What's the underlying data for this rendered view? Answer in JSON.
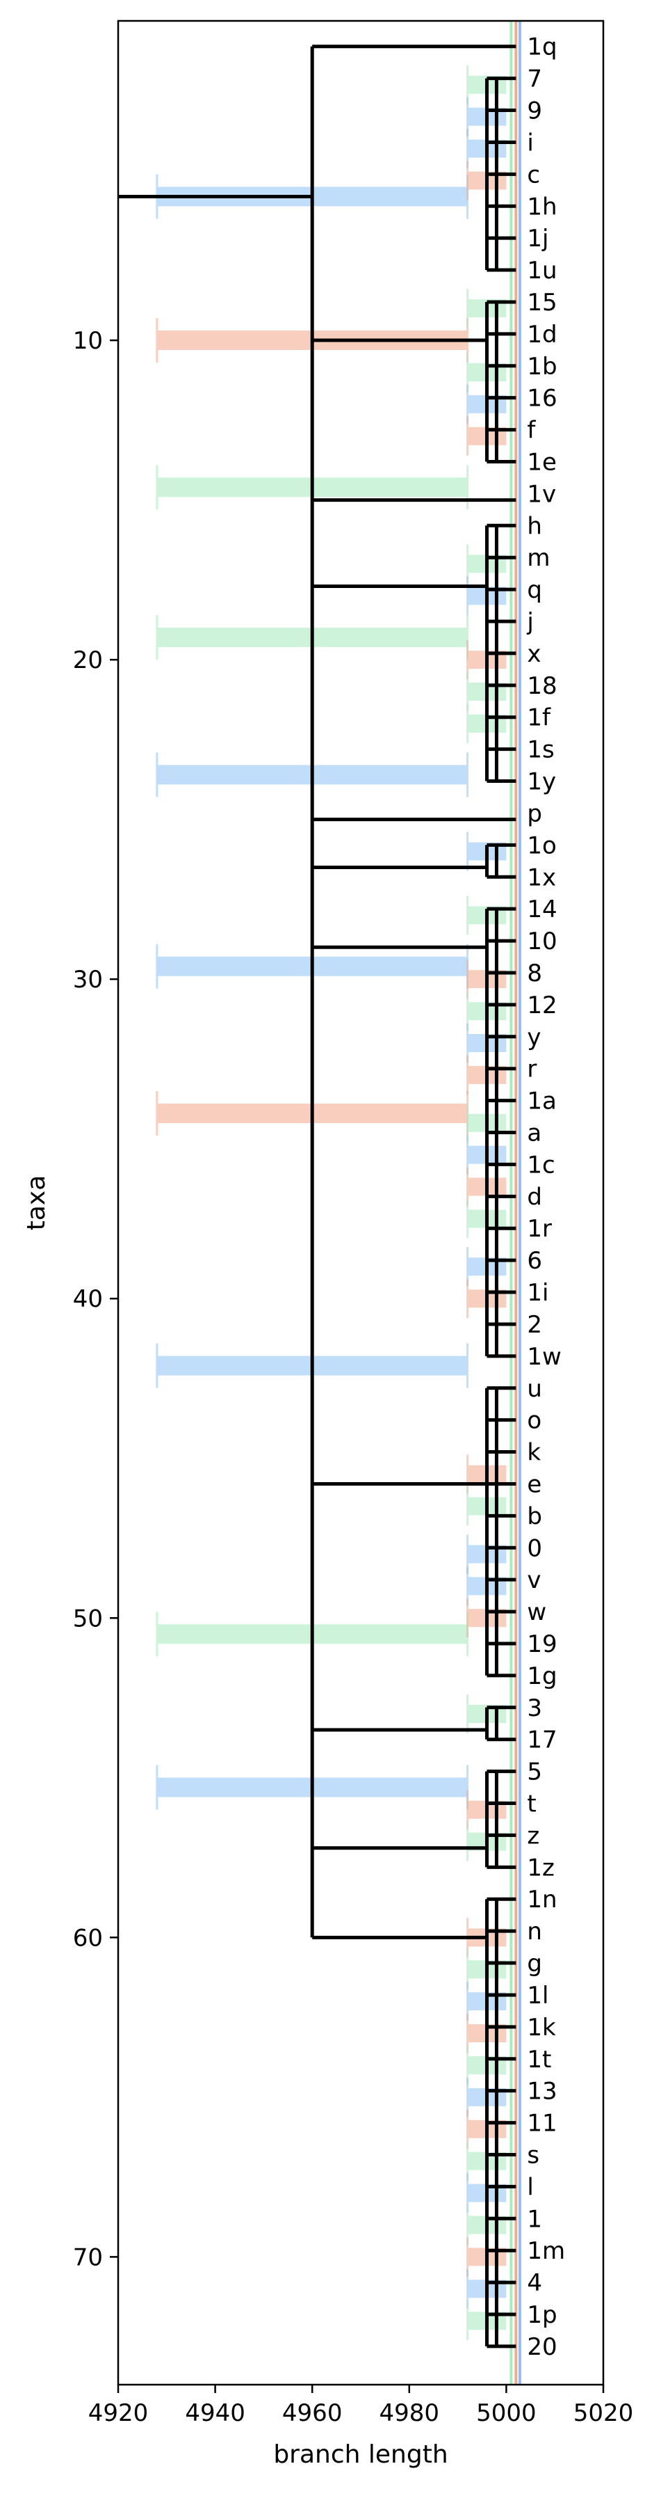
{
  "chart_data": {
    "type": "phylogenetic-tree",
    "xlabel": "branch length",
    "ylabel": "taxa",
    "xlim": [
      4920,
      5020
    ],
    "ylim": [
      74,
      0
    ],
    "xticks": [
      4920,
      4940,
      4960,
      4980,
      5000,
      5020
    ],
    "yticks": [
      10,
      20,
      30,
      40,
      50,
      60,
      70
    ],
    "grid": false,
    "colors": {
      "branch": "#000000",
      "blue": "#8ec2f5",
      "orange": "#f3a98a",
      "green": "#a6ecbf"
    },
    "tips": [
      "1q",
      "7",
      "9",
      "i",
      "c",
      "1h",
      "1j",
      "1u",
      "15",
      "1d",
      "1b",
      "16",
      "f",
      "1e",
      "1v",
      "h",
      "m",
      "q",
      "j",
      "x",
      "18",
      "1f",
      "1s",
      "1y",
      "p",
      "1o",
      "1x",
      "14",
      "10",
      "8",
      "12",
      "y",
      "r",
      "1a",
      "a",
      "1c",
      "d",
      "1r",
      "6",
      "1i",
      "2",
      "1w",
      "u",
      "o",
      "k",
      "e",
      "b",
      "0",
      "v",
      "w",
      "19",
      "1g",
      "3",
      "17",
      "5",
      "t",
      "z",
      "1z",
      "1n",
      "n",
      "g",
      "1l",
      "1k",
      "1t",
      "13",
      "11",
      "s",
      "l",
      "1",
      "1m",
      "4",
      "1p",
      "20"
    ],
    "tip_x": 5002,
    "root": {
      "x": 4960,
      "y_top": 0.8,
      "y_bottom": 60
    },
    "backbone_branches": [
      {
        "y": 0.8,
        "x_end": 5002
      },
      {
        "y": 10,
        "x_end": 4996
      },
      {
        "y": 15,
        "x_end": 5002
      },
      {
        "y": 17.7,
        "x_end": 4996
      },
      {
        "y": 25,
        "x_end": 5002
      },
      {
        "y": 26.5,
        "x_end": 4996
      },
      {
        "y": 29,
        "x_end": 4996
      },
      {
        "y": 45.8,
        "x_end": 4996
      },
      {
        "y": 53.5,
        "x_end": 4996
      },
      {
        "y": 57.2,
        "x_end": 4996
      },
      {
        "y": 60,
        "x_end": 4996
      }
    ],
    "root_stem": {
      "y": 5.5,
      "x_start": 4920,
      "x_end": 4960
    },
    "clades": [
      {
        "vx": 4996,
        "vy0": 1.8,
        "vy1": 7.8,
        "nx": 4998,
        "tips": [
          1,
          2,
          3,
          4,
          5,
          6,
          7
        ]
      },
      {
        "vx": 4996,
        "vy0": 8.8,
        "vy1": 13.8,
        "nx": 4998,
        "tips": [
          8,
          9,
          10,
          11,
          12,
          13
        ]
      },
      {
        "vx": 4996,
        "vy0": 15.8,
        "vy1": 23.8,
        "nx": 4998,
        "tips": [
          15,
          16,
          17,
          18,
          19,
          20,
          21,
          22,
          23
        ]
      },
      {
        "vx": 4996,
        "vy0": 25.8,
        "vy1": 26.8,
        "nx": 4998,
        "tips": [
          25,
          26
        ]
      },
      {
        "vx": 4996,
        "vy0": 27.8,
        "vy1": 41.8,
        "nx": 4998,
        "tips": [
          27,
          28,
          29,
          30,
          31,
          32,
          33,
          34,
          35,
          36,
          37,
          38,
          39,
          40,
          41
        ]
      },
      {
        "vx": 4996,
        "vy0": 42.8,
        "vy1": 51.8,
        "nx": 4998,
        "tips": [
          42,
          43,
          44,
          45,
          46,
          47,
          48,
          49,
          50,
          51
        ]
      },
      {
        "vx": 4996,
        "vy0": 52.8,
        "vy1": 53.8,
        "nx": 4998,
        "tips": [
          52,
          53
        ]
      },
      {
        "vx": 4996,
        "vy0": 54.8,
        "vy1": 57.8,
        "nx": 4998,
        "tips": [
          54,
          55,
          56,
          57
        ]
      },
      {
        "vx": 4996,
        "vy0": 58.8,
        "vy1": 72.8,
        "nx": 4998,
        "tips": [
          58,
          59,
          60,
          61,
          62,
          63,
          64,
          65,
          66,
          67,
          68,
          69,
          70,
          71,
          72
        ]
      }
    ],
    "error_bars": [
      {
        "y": 5.5,
        "x0": 4928,
        "x1": 4992,
        "color": "blue"
      },
      {
        "y": 10.0,
        "x0": 4928,
        "x1": 4992,
        "color": "orange"
      },
      {
        "y": 14.6,
        "x0": 4928,
        "x1": 4992,
        "color": "green"
      },
      {
        "y": 19.3,
        "x0": 4928,
        "x1": 4992,
        "color": "green"
      },
      {
        "y": 23.6,
        "x0": 4928,
        "x1": 4992,
        "color": "blue"
      },
      {
        "y": 29.6,
        "x0": 4928,
        "x1": 4992,
        "color": "blue"
      },
      {
        "y": 34.2,
        "x0": 4928,
        "x1": 4992,
        "color": "orange"
      },
      {
        "y": 42.1,
        "x0": 4928,
        "x1": 4992,
        "color": "blue"
      },
      {
        "y": 50.5,
        "x0": 4928,
        "x1": 4992,
        "color": "green"
      },
      {
        "y": 55.3,
        "x0": 4928,
        "x1": 4992,
        "color": "blue"
      }
    ],
    "tip_bars": [
      {
        "y": 2.0,
        "color": "green"
      },
      {
        "y": 3.0,
        "color": "blue"
      },
      {
        "y": 4.0,
        "color": "blue"
      },
      {
        "y": 5.0,
        "color": "orange"
      },
      {
        "y": 9.0,
        "color": "green"
      },
      {
        "y": 11.0,
        "color": "green"
      },
      {
        "y": 12.0,
        "color": "blue"
      },
      {
        "y": 13.0,
        "color": "orange"
      },
      {
        "y": 17.0,
        "color": "green"
      },
      {
        "y": 18.0,
        "color": "blue"
      },
      {
        "y": 20.0,
        "color": "orange"
      },
      {
        "y": 21.0,
        "color": "green"
      },
      {
        "y": 22.0,
        "color": "green"
      },
      {
        "y": 26.0,
        "color": "blue"
      },
      {
        "y": 28.0,
        "color": "green"
      },
      {
        "y": 30.0,
        "color": "orange"
      },
      {
        "y": 31.0,
        "color": "green"
      },
      {
        "y": 32.0,
        "color": "blue"
      },
      {
        "y": 33.0,
        "color": "orange"
      },
      {
        "y": 34.5,
        "color": "green"
      },
      {
        "y": 35.5,
        "color": "blue"
      },
      {
        "y": 36.5,
        "color": "orange"
      },
      {
        "y": 37.5,
        "color": "green"
      },
      {
        "y": 39.0,
        "color": "blue"
      },
      {
        "y": 40.0,
        "color": "orange"
      },
      {
        "y": 45.5,
        "color": "orange"
      },
      {
        "y": 46.5,
        "color": "green"
      },
      {
        "y": 48.0,
        "color": "blue"
      },
      {
        "y": 49.0,
        "color": "blue"
      },
      {
        "y": 50.0,
        "color": "orange"
      },
      {
        "y": 53.0,
        "color": "green"
      },
      {
        "y": 56.0,
        "color": "orange"
      },
      {
        "y": 57.0,
        "color": "green"
      },
      {
        "y": 60.0,
        "color": "orange"
      },
      {
        "y": 61.0,
        "color": "green"
      },
      {
        "y": 62.0,
        "color": "blue"
      },
      {
        "y": 63.0,
        "color": "orange"
      },
      {
        "y": 64.0,
        "color": "green"
      },
      {
        "y": 65.0,
        "color": "blue"
      },
      {
        "y": 66.0,
        "color": "orange"
      },
      {
        "y": 67.0,
        "color": "green"
      },
      {
        "y": 68.0,
        "color": "blue"
      },
      {
        "y": 69.0,
        "color": "green"
      },
      {
        "y": 70.0,
        "color": "orange"
      },
      {
        "y": 71.0,
        "color": "blue"
      },
      {
        "y": 72.0,
        "color": "green"
      }
    ],
    "vertical_lines": [
      {
        "x": 5001,
        "color": "green"
      },
      {
        "x": 5002,
        "color": "orange"
      },
      {
        "x": 5002.8,
        "color": "blue"
      }
    ]
  }
}
